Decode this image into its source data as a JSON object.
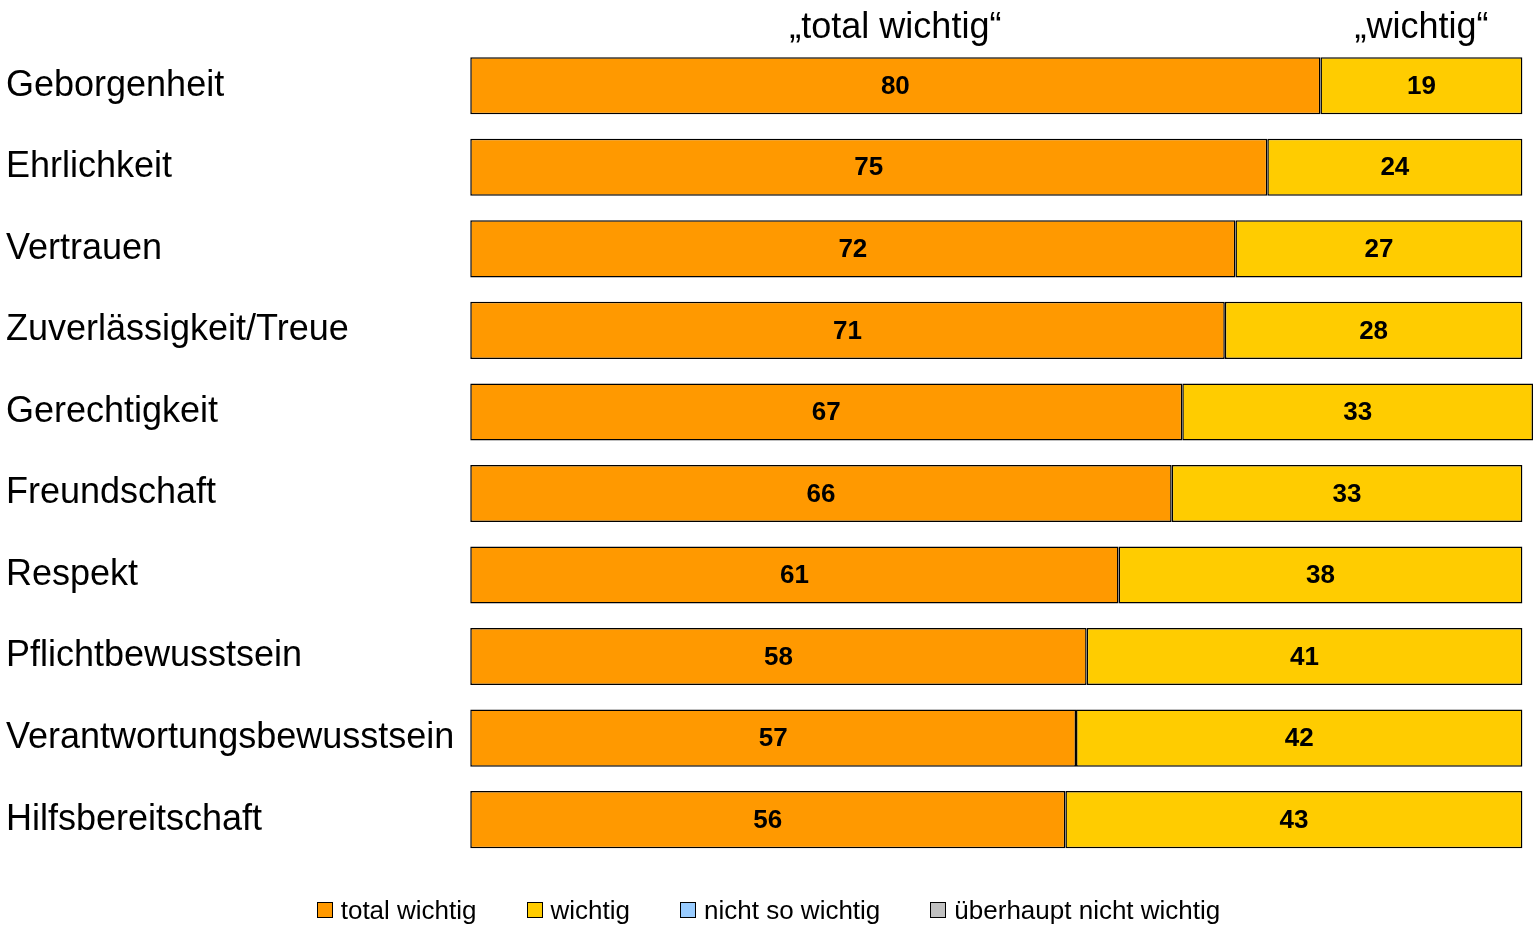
{
  "chart_data": {
    "type": "bar",
    "orientation": "horizontal",
    "stacked": true,
    "data_labels": true,
    "legend": "bottom",
    "tick_labels": "y",
    "xlim": [
      0,
      100
    ],
    "annotations": [
      "„total wichtig“",
      "„wichtig“"
    ],
    "categories": [
      "Geborgenheit",
      "Ehrlichkeit",
      "Vertrauen",
      "Zuverlässigkeit/Treue",
      "Gerechtigkeit",
      "Freundschaft",
      "Respekt",
      "Pflichtbewusstsein",
      "Verantwortungsbewusstsein",
      "Hilfsbereitschaft"
    ],
    "series": [
      {
        "name": "total wichtig",
        "color": "#ff9900",
        "values": [
          80,
          75,
          72,
          71,
          67,
          66,
          61,
          58,
          57,
          56
        ]
      },
      {
        "name": "wichtig",
        "color": "#ffcc00",
        "values": [
          19,
          24,
          27,
          28,
          33,
          33,
          38,
          41,
          42,
          43
        ]
      },
      {
        "name": "nicht so wichtig",
        "color": "#99ccff",
        "values": [
          null,
          null,
          null,
          null,
          null,
          null,
          null,
          null,
          null,
          null
        ]
      },
      {
        "name": "überhaupt nicht wichtig",
        "color": "#c0c0c0",
        "values": [
          null,
          null,
          null,
          null,
          null,
          null,
          null,
          null,
          null,
          null
        ]
      }
    ]
  }
}
